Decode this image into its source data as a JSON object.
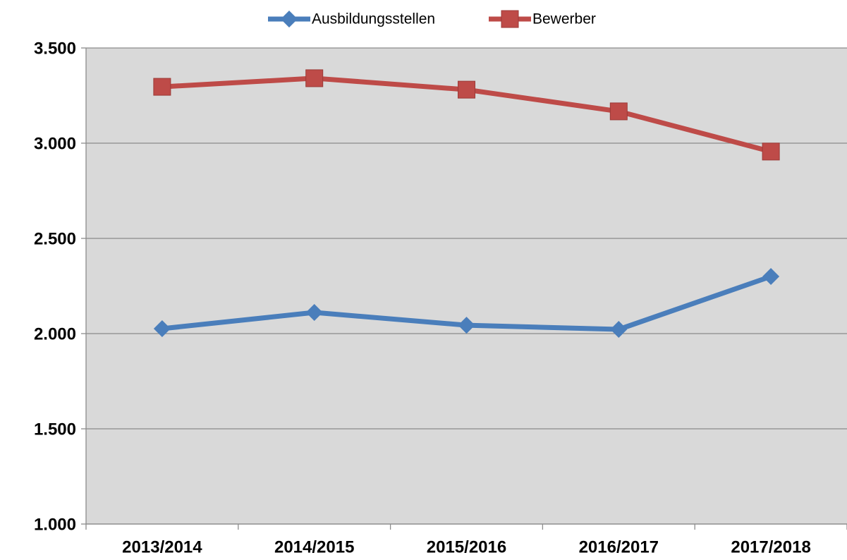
{
  "chart_data": {
    "type": "line",
    "categories": [
      "2013/2014",
      "2014/2015",
      "2015/2016",
      "2016/2017",
      "2017/2018"
    ],
    "series": [
      {
        "name": "Ausbildungsstellen",
        "color": "#4a7ebb",
        "marker": "diamond",
        "values": [
          2026,
          2111,
          2044,
          2022,
          2300
        ]
      },
      {
        "name": "Bewerber",
        "color": "#be4b48",
        "marker": "square",
        "values": [
          3296,
          3341,
          3281,
          3167,
          2956
        ]
      }
    ],
    "ylim": [
      1000,
      3500
    ],
    "yticks": [
      {
        "value": 1000,
        "label": "1.000"
      },
      {
        "value": 1500,
        "label": "1.500"
      },
      {
        "value": 2000,
        "label": "2.000"
      },
      {
        "value": 2500,
        "label": "2.500"
      },
      {
        "value": 3000,
        "label": "3.000"
      },
      {
        "value": 3500,
        "label": "3.500"
      }
    ],
    "grid": true,
    "legend": "top"
  }
}
